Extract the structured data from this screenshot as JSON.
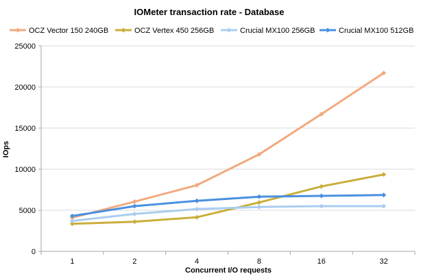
{
  "chart_data": {
    "type": "line",
    "title": "IOMeter  transaction  rate - Database",
    "xlabel": "Concurrent I/O requests",
    "ylabel": "IOps",
    "categories": [
      "1",
      "2",
      "4",
      "8",
      "16",
      "32"
    ],
    "ylim": [
      0,
      25000
    ],
    "yticks": [
      0,
      5000,
      10000,
      15000,
      20000,
      25000
    ],
    "grid": "horizontal",
    "legend_position": "top",
    "series": [
      {
        "name": "OCZ Vector  150  240GB",
        "color": "#F2A97E",
        "values": [
          4100,
          6050,
          8050,
          11800,
          16700,
          21700
        ]
      },
      {
        "name": "OCZ Vertex  450  256GB",
        "color": "#C9AE3B",
        "values": [
          3350,
          3600,
          4150,
          5950,
          7900,
          9350
        ]
      },
      {
        "name": "Crucial  MX100  256GB",
        "color": "#A9CDF0",
        "values": [
          3700,
          4550,
          5150,
          5400,
          5500,
          5500
        ]
      },
      {
        "name": "Crucial  MX100  512GB",
        "color": "#4A8FE0",
        "values": [
          4300,
          5500,
          6150,
          6650,
          6750,
          6850
        ]
      }
    ]
  }
}
